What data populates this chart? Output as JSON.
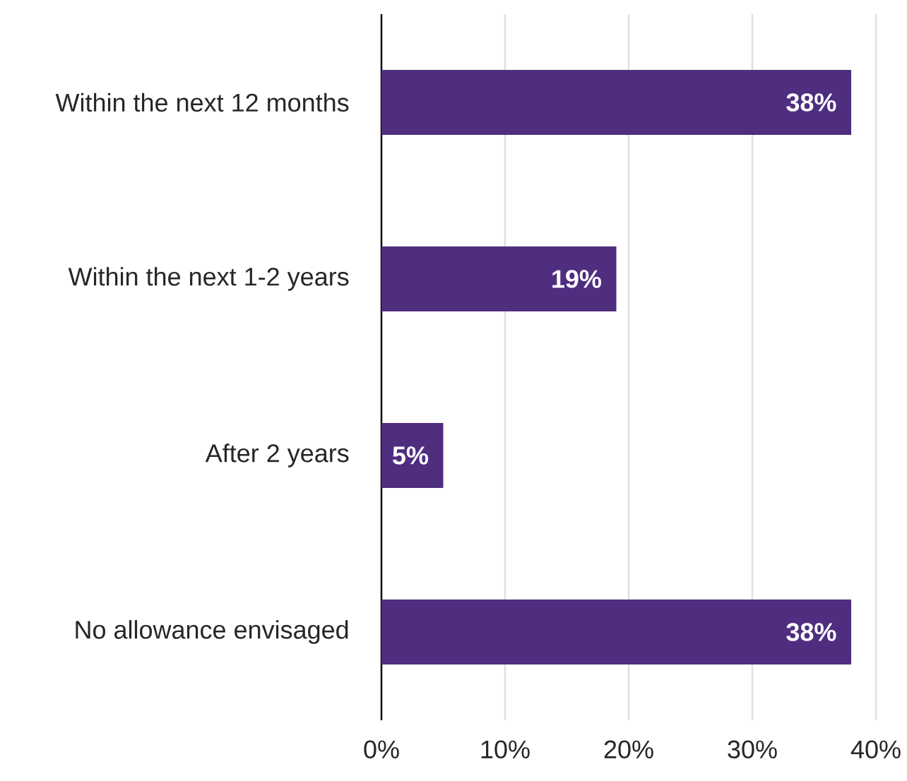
{
  "chart_data": {
    "type": "bar",
    "orientation": "horizontal",
    "categories": [
      "Within the next 12 months",
      "Within the next 1-2 years",
      "After 2 years",
      "No allowance envisaged"
    ],
    "values": [
      38,
      19,
      5,
      38
    ],
    "value_labels": [
      "38%",
      "19%",
      "5%",
      "38%"
    ],
    "color": "#4f2d7f",
    "xlim": [
      0,
      40
    ],
    "xticks": [
      {
        "value": 0,
        "label": "0%"
      },
      {
        "value": 10,
        "label": "10%"
      },
      {
        "value": 20,
        "label": "20%"
      },
      {
        "value": 30,
        "label": "30%"
      },
      {
        "value": 40,
        "label": "40%"
      }
    ],
    "grid": "x"
  }
}
